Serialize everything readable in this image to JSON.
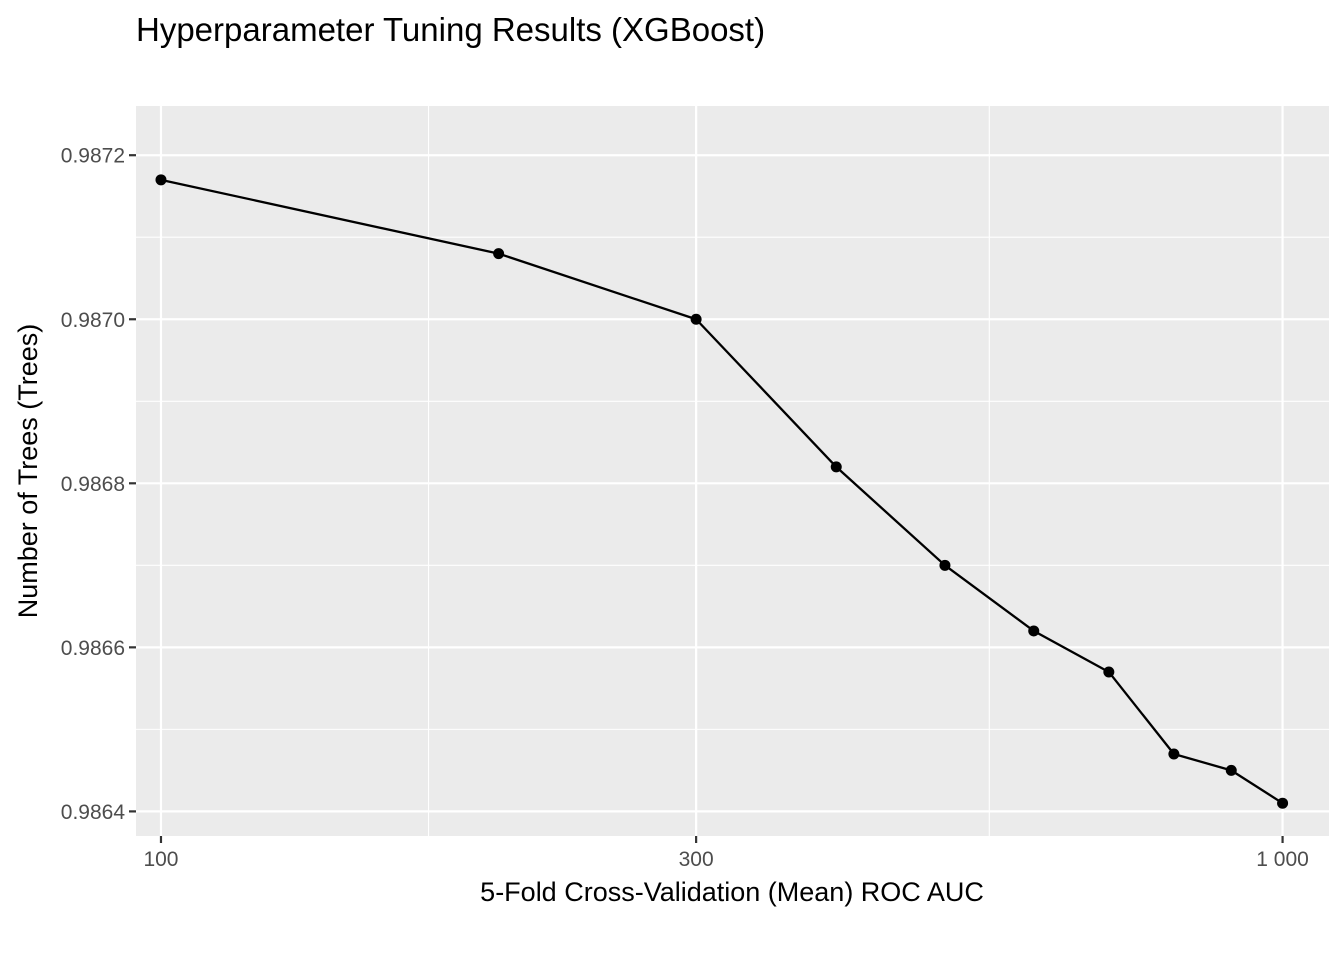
{
  "chart_data": {
    "type": "line",
    "title": "Hyperparameter Tuning Results (XGBoost)",
    "xlabel": "5-Fold Cross-Validation (Mean) ROC AUC",
    "ylabel": "Number of Trees (Trees)",
    "x_scale": "log10",
    "xlim": [
      95,
      1100
    ],
    "ylim": [
      0.98637,
      0.98726
    ],
    "x_ticks": [
      {
        "value": 100,
        "label": "100"
      },
      {
        "value": 300,
        "label": "300"
      },
      {
        "value": 1000,
        "label": "1 000"
      }
    ],
    "y_ticks": [
      {
        "value": 0.9864,
        "label": "0.9864"
      },
      {
        "value": 0.9866,
        "label": "0.9866"
      },
      {
        "value": 0.9868,
        "label": "0.9868"
      },
      {
        "value": 0.987,
        "label": "0.9870"
      },
      {
        "value": 0.9872,
        "label": "0.9872"
      }
    ],
    "grid": true,
    "x_minor_breaks": [
      173.2,
      547.7
    ],
    "y_minor_breaks": [
      0.9865,
      0.9867,
      0.9869,
      0.9871
    ],
    "legend": "none",
    "series": [
      {
        "x": [
          100,
          200,
          300,
          400,
          500,
          600,
          700,
          800,
          900,
          1000
        ],
        "y": [
          0.98717,
          0.98708,
          0.987,
          0.98682,
          0.9867,
          0.98662,
          0.98657,
          0.98647,
          0.98645,
          0.98641
        ]
      }
    ],
    "colors": {
      "panel_background": "#ebebeb",
      "grid_major": "#ffffff",
      "grid_minor": "#ffffff",
      "line": "#000000",
      "point": "#000000",
      "tick_text": "#4d4d4d",
      "tick_mark": "#333333"
    }
  }
}
